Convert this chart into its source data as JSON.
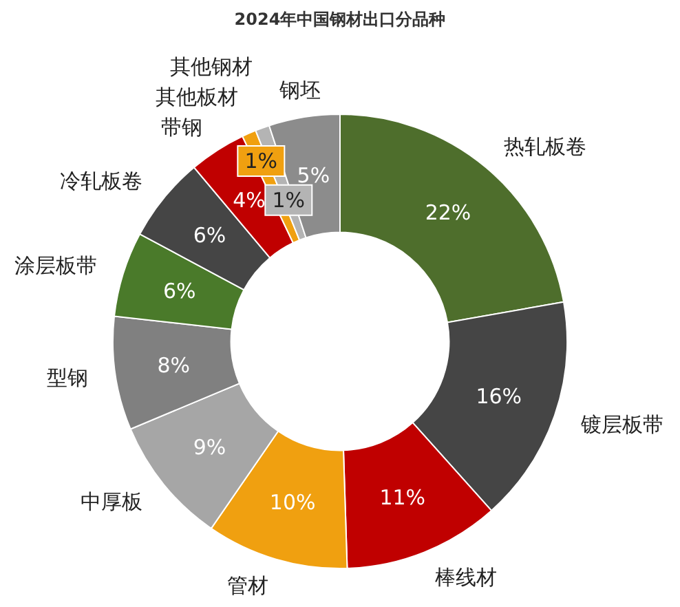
{
  "chart_data": {
    "type": "donut",
    "title": "2024年中国钢材出口分品种",
    "categories": [
      "热轧板卷",
      "镀层板带",
      "棒线材",
      "管材",
      "中厚板",
      "型钢",
      "涂层板带",
      "冷轧板卷",
      "带钢",
      "其他板材",
      "其他钢材",
      "钢坯"
    ],
    "values": [
      22,
      16,
      11,
      10,
      9,
      8,
      6,
      6,
      4,
      1,
      1,
      5
    ],
    "colors": [
      "#4e6e2c",
      "#454545",
      "#c00000",
      "#f0a010",
      "#a6a6a6",
      "#808080",
      "#4a7a2a",
      "#454545",
      "#c00000",
      "#f0a010",
      "#b4b4b4",
      "#8c8c8c"
    ],
    "value_labels": [
      "22%",
      "16%",
      "11%",
      "10%",
      "9%",
      "8%",
      "6%",
      "6%",
      "4%",
      "1%",
      "1%",
      "5%"
    ]
  }
}
